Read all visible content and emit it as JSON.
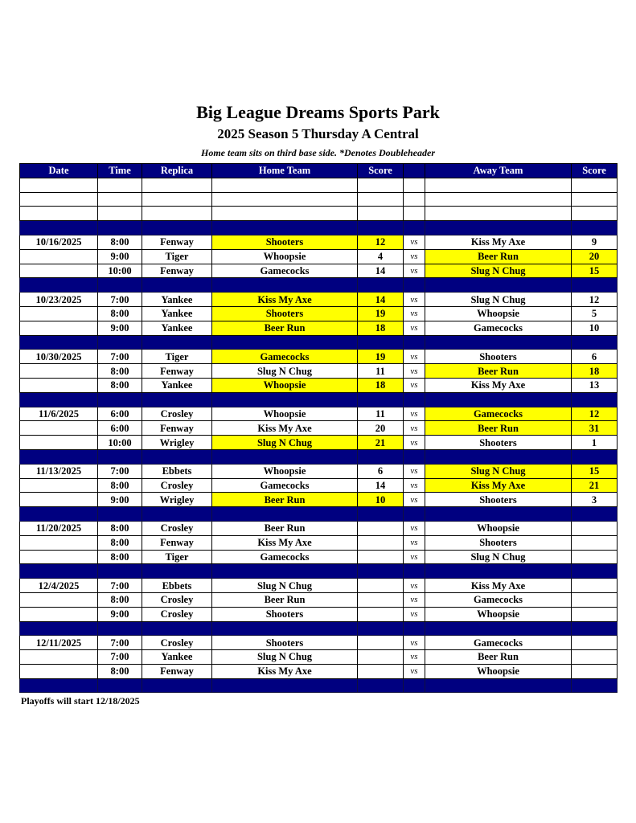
{
  "header": {
    "title": "Big League Dreams Sports Park",
    "subtitle": "2025 Season 5 Thursday A Central",
    "note": "Home team sits on third base side.  *Denotes Doubleheader"
  },
  "columns": [
    "Date",
    "Time",
    "Replica",
    "Home Team",
    "Score",
    "",
    "Away Team",
    "Score"
  ],
  "vs_label": "vs",
  "highlight_color": "#ffff00",
  "header_color": "#000080",
  "weeks": [
    {
      "date": "10/16/2025",
      "games": [
        {
          "time": "8:00",
          "replica": "Fenway",
          "home": "Shooters",
          "home_score": "12",
          "away": "Kiss My Axe",
          "away_score": "9",
          "winner": "home"
        },
        {
          "time": "9:00",
          "replica": "Tiger",
          "home": "Whoopsie",
          "home_score": "4",
          "away": "Beer Run",
          "away_score": "20",
          "winner": "away"
        },
        {
          "time": "10:00",
          "replica": "Fenway",
          "home": "Gamecocks",
          "home_score": "14",
          "away": "Slug N Chug",
          "away_score": "15",
          "winner": "away"
        }
      ]
    },
    {
      "date": "10/23/2025",
      "games": [
        {
          "time": "7:00",
          "replica": "Yankee",
          "home": "Kiss My Axe",
          "home_score": "14",
          "away": "Slug N Chug",
          "away_score": "12",
          "winner": "home"
        },
        {
          "time": "8:00",
          "replica": "Yankee",
          "home": "Shooters",
          "home_score": "19",
          "away": "Whoopsie",
          "away_score": "5",
          "winner": "home"
        },
        {
          "time": "9:00",
          "replica": "Yankee",
          "home": "Beer Run",
          "home_score": "18",
          "away": "Gamecocks",
          "away_score": "10",
          "winner": "home"
        }
      ]
    },
    {
      "date": "10/30/2025",
      "games": [
        {
          "time": "7:00",
          "replica": "Tiger",
          "home": "Gamecocks",
          "home_score": "19",
          "away": "Shooters",
          "away_score": "6",
          "winner": "home"
        },
        {
          "time": "8:00",
          "replica": "Fenway",
          "home": "Slug N Chug",
          "home_score": "11",
          "away": "Beer Run",
          "away_score": "18",
          "winner": "away"
        },
        {
          "time": "8:00",
          "replica": "Yankee",
          "home": "Whoopsie",
          "home_score": "18",
          "away": "Kiss My Axe",
          "away_score": "13",
          "winner": "home"
        }
      ]
    },
    {
      "date": "11/6/2025",
      "games": [
        {
          "time": "6:00",
          "replica": "Crosley",
          "home": "Whoopsie",
          "home_score": "11",
          "away": "Gamecocks",
          "away_score": "12",
          "winner": "away"
        },
        {
          "time": "6:00",
          "replica": "Fenway",
          "home": "Kiss My Axe",
          "home_score": "20",
          "away": "Beer Run",
          "away_score": "31",
          "winner": "away"
        },
        {
          "time": "10:00",
          "replica": "Wrigley",
          "home": "Slug N Chug",
          "home_score": "21",
          "away": "Shooters",
          "away_score": "1",
          "winner": "home"
        }
      ]
    },
    {
      "date": "11/13/2025",
      "games": [
        {
          "time": "7:00",
          "replica": "Ebbets",
          "home": "Whoopsie",
          "home_score": "6",
          "away": "Slug N Chug",
          "away_score": "15",
          "winner": "away"
        },
        {
          "time": "8:00",
          "replica": "Crosley",
          "home": "Gamecocks",
          "home_score": "14",
          "away": "Kiss My Axe",
          "away_score": "21",
          "winner": "away"
        },
        {
          "time": "9:00",
          "replica": "Wrigley",
          "home": "Beer Run",
          "home_score": "10",
          "away": "Shooters",
          "away_score": "3",
          "winner": "home"
        }
      ]
    },
    {
      "date": "11/20/2025",
      "games": [
        {
          "time": "8:00",
          "replica": "Crosley",
          "home": "Beer Run",
          "home_score": "",
          "away": "Whoopsie",
          "away_score": "",
          "winner": ""
        },
        {
          "time": "8:00",
          "replica": "Fenway",
          "home": "Kiss My Axe",
          "home_score": "",
          "away": "Shooters",
          "away_score": "",
          "winner": ""
        },
        {
          "time": "8:00",
          "replica": "Tiger",
          "home": "Gamecocks",
          "home_score": "",
          "away": "Slug N Chug",
          "away_score": "",
          "winner": ""
        }
      ]
    },
    {
      "date": "12/4/2025",
      "games": [
        {
          "time": "7:00",
          "replica": "Ebbets",
          "home": "Slug N Chug",
          "home_score": "",
          "away": "Kiss My Axe",
          "away_score": "",
          "winner": ""
        },
        {
          "time": "8:00",
          "replica": "Crosley",
          "home": "Beer Run",
          "home_score": "",
          "away": "Gamecocks",
          "away_score": "",
          "winner": ""
        },
        {
          "time": "9:00",
          "replica": "Crosley",
          "home": "Shooters",
          "home_score": "",
          "away": "Whoopsie",
          "away_score": "",
          "winner": ""
        }
      ]
    },
    {
      "date": "12/11/2025",
      "games": [
        {
          "time": "7:00",
          "replica": "Crosley",
          "home": "Shooters",
          "home_score": "",
          "away": "Gamecocks",
          "away_score": "",
          "winner": ""
        },
        {
          "time": "7:00",
          "replica": "Yankee",
          "home": "Slug N Chug",
          "home_score": "",
          "away": "Beer Run",
          "away_score": "",
          "winner": ""
        },
        {
          "time": "8:00",
          "replica": "Fenway",
          "home": "Kiss My Axe",
          "home_score": "",
          "away": "Whoopsie",
          "away_score": "",
          "winner": ""
        }
      ]
    }
  ],
  "footer": "Playoffs will start 12/18/2025"
}
